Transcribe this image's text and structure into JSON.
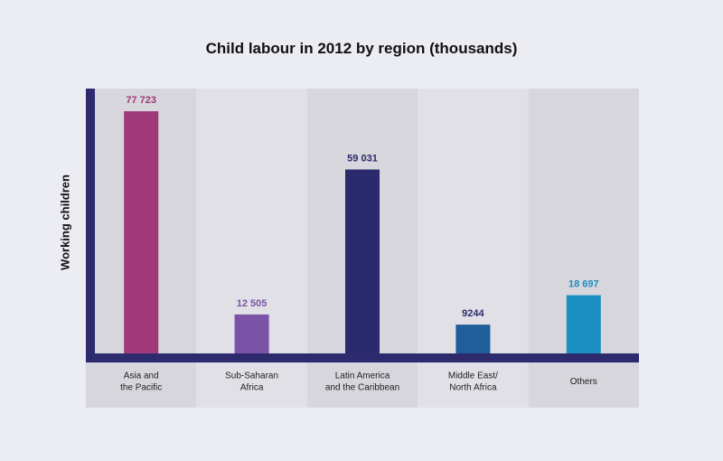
{
  "chart_data": {
    "type": "bar",
    "title": "Child labour in 2012 by region (thousands)",
    "ylabel": "Working children",
    "xlabel": "",
    "categories": [
      [
        "Asia and",
        "the Pacific"
      ],
      [
        "Sub-Saharan",
        "Africa"
      ],
      [
        "Latin America",
        "and the Caribbean"
      ],
      [
        "Middle East/",
        "North Africa"
      ],
      [
        "Others"
      ]
    ],
    "values": [
      77723,
      12505,
      59031,
      9244,
      18697
    ],
    "value_labels": [
      "77 723",
      "12 505",
      "59 031",
      "9244",
      "18 697"
    ],
    "bar_colors": [
      "#a0397a",
      "#7b52a6",
      "#2b2a6c",
      "#1f5e9b",
      "#1b8fc1"
    ],
    "label_colors": [
      "#a0397a",
      "#7b52a6",
      "#2b2a6c",
      "#2b2a6c",
      "#1b8fc1"
    ],
    "ylim": [
      0,
      85000
    ],
    "grid": false,
    "legend": "none"
  }
}
